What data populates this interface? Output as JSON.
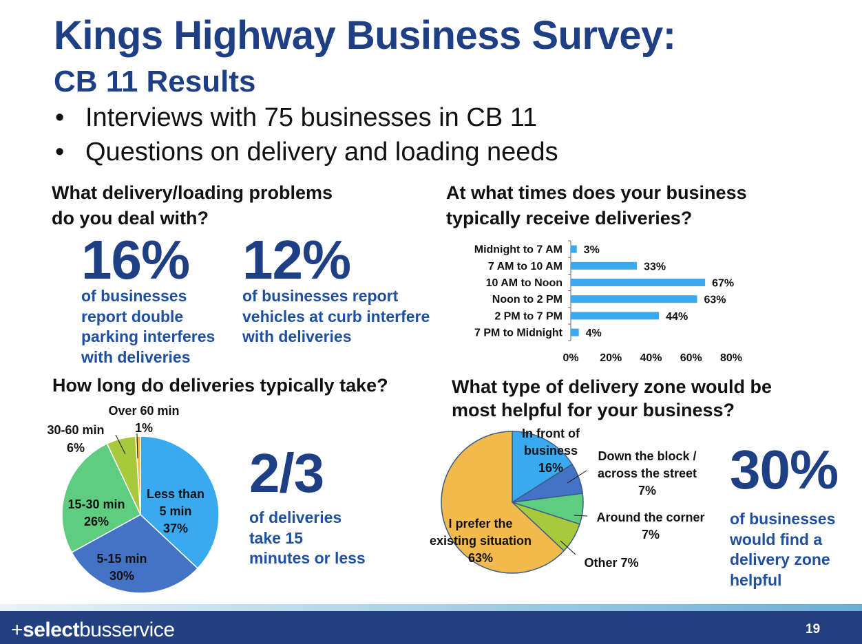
{
  "header": {
    "title": "Kings Highway Business Survey:",
    "subtitle": "CB 11 Results",
    "bullets": [
      "Interviews with 75 businesses in CB 11",
      "Questions on delivery and loading needs"
    ],
    "bullet_glyph": "•"
  },
  "problems": {
    "question": [
      "What delivery/loading problems",
      "do you deal with?"
    ],
    "stats": [
      {
        "value": "16%",
        "lines": [
          "of businesses",
          "report double",
          "parking interferes",
          "with deliveries"
        ]
      },
      {
        "value": "12%",
        "lines": [
          "of businesses report",
          "vehicles at curb interfere",
          "with deliveries"
        ]
      }
    ]
  },
  "times": {
    "question": [
      "At what times does your business",
      "typically receive deliveries?"
    ]
  },
  "duration": {
    "question": "How long do deliveries typically take?",
    "stat": {
      "value": "2/3",
      "lines": [
        "of deliveries",
        "take 15",
        "minutes or less"
      ]
    }
  },
  "zone": {
    "question": [
      "What type of delivery zone would be",
      "most helpful for your business?"
    ],
    "stat": {
      "value": "30%",
      "lines": [
        "of businesses",
        "would find a",
        "delivery zone",
        "helpful"
      ]
    }
  },
  "footer": {
    "brand_prefix": "+",
    "brand_bold": "select",
    "brand_rest": "busservice",
    "page": "19"
  },
  "chart_data": [
    {
      "type": "bar",
      "orientation": "horizontal",
      "categories": [
        "Midnight to 7 AM",
        "7 AM to 10 AM",
        "10 AM to Noon",
        "Noon to 2 PM",
        "2 PM to 7 PM",
        "7 PM to Midnight"
      ],
      "values": [
        3,
        33,
        67,
        63,
        44,
        4
      ],
      "value_labels": [
        "3%",
        "33%",
        "67%",
        "63%",
        "44%",
        "4%"
      ],
      "xticks": [
        0,
        20,
        40,
        60,
        80
      ],
      "xtick_labels": [
        "0%",
        "20%",
        "40%",
        "60%",
        "80%"
      ],
      "xlim": [
        0,
        80
      ],
      "color": "#3aaaf0",
      "grid": false
    },
    {
      "type": "pie",
      "slices": [
        {
          "label": [
            "Less than",
            "5 min",
            "37%"
          ],
          "value": 37,
          "color": "#3aaaf0"
        },
        {
          "label": [
            "5-15 min",
            "30%"
          ],
          "value": 30,
          "color": "#4472c4"
        },
        {
          "label": [
            "15-30 min",
            "26%"
          ],
          "value": 26,
          "color": "#5fcd7f"
        },
        {
          "label": [
            "30-60 min",
            "6%"
          ],
          "value": 6,
          "color": "#a8c93c"
        },
        {
          "label": [
            "Over 60 min",
            "1%"
          ],
          "value": 1,
          "color": "#f2b94d"
        }
      ]
    },
    {
      "type": "pie",
      "slices": [
        {
          "label": [
            "In front of",
            "business",
            "16%"
          ],
          "value": 16,
          "color": "#3aaaf0"
        },
        {
          "label": [
            "Down the block /",
            "across the street",
            "7%"
          ],
          "value": 7,
          "color": "#4472c4"
        },
        {
          "label": [
            "Around the corner",
            "7%"
          ],
          "value": 7,
          "color": "#5fcd7f"
        },
        {
          "label": [
            "Other 7%"
          ],
          "value": 7,
          "color": "#a8c93c"
        },
        {
          "label": [
            "I prefer the",
            "existing situation",
            "63%"
          ],
          "value": 63,
          "color": "#f2b94d"
        }
      ]
    }
  ]
}
